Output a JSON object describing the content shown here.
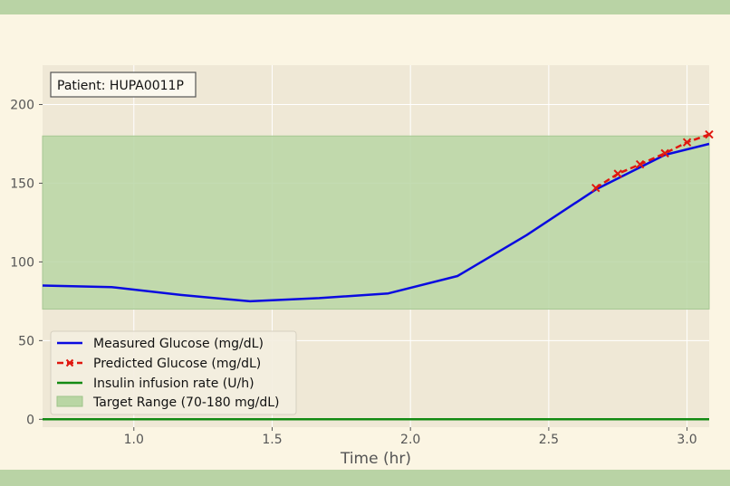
{
  "colors": {
    "page_background": "#fbf5e3",
    "band": "#b9d3a5",
    "plot_background": "#efe8d6",
    "grid": "#ffffff",
    "measured": "#0a0ae0",
    "predicted": "#e0170f",
    "insulin": "#138a13",
    "target_fill": "#b9d6a4"
  },
  "chart_data": {
    "type": "line",
    "annotation": "Patient: HUPA0011P",
    "xlabel": "Time (hr)",
    "ylabel": "",
    "xlim": [
      0.67,
      3.08
    ],
    "ylim": [
      -5,
      225
    ],
    "xticks": [
      1.0,
      1.5,
      2.0,
      2.5,
      3.0
    ],
    "xtick_labels": [
      "1.0",
      "1.5",
      "2.0",
      "2.5",
      "3.0"
    ],
    "yticks": [
      0,
      50,
      100,
      150,
      200
    ],
    "ytick_labels": [
      "0",
      "50",
      "100",
      "150",
      "200"
    ],
    "grid": true,
    "legend_position": "bottom-left",
    "target_range": {
      "low": 70,
      "high": 180,
      "label": "Target Range (70-180 mg/dL)"
    },
    "series": [
      {
        "name": "Measured Glucose (mg/dL)",
        "style": "solid",
        "x": [
          0.67,
          0.92,
          1.17,
          1.42,
          1.67,
          1.92,
          2.17,
          2.42,
          2.67,
          2.92,
          3.08
        ],
        "y": [
          85,
          84,
          79,
          75,
          77,
          80,
          91,
          117,
          146,
          168,
          175
        ]
      },
      {
        "name": "Predicted Glucose (mg/dL)",
        "style": "dashed-x",
        "x": [
          2.67,
          2.75,
          2.83,
          2.92,
          3.0,
          3.08
        ],
        "y": [
          147,
          156,
          162,
          169,
          176,
          181
        ]
      },
      {
        "name": "Insulin infusion rate (U/h)",
        "style": "solid",
        "x": [
          0.67,
          3.08
        ],
        "y": [
          0,
          0
        ]
      }
    ]
  }
}
